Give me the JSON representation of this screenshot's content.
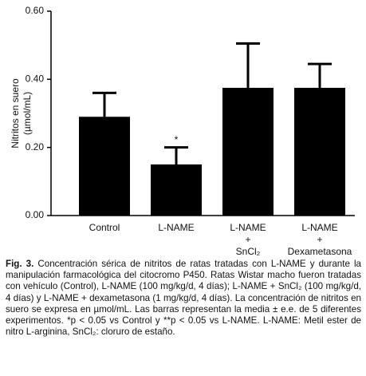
{
  "chart_data": {
    "type": "bar",
    "y_label": "Nitritos en suero\n(µmol/mL)",
    "categories": [
      "Control",
      "L-NAME",
      "L-NAME + SnCl₂",
      "L-NAME + Dexametasona"
    ],
    "values": [
      0.29,
      0.15,
      0.375,
      0.375
    ],
    "errors": [
      0.07,
      0.05,
      0.13,
      0.07
    ],
    "annotations": [
      null,
      "*",
      null,
      null
    ],
    "color": "#000000",
    "ylim": [
      0,
      0.6
    ],
    "yticks": [
      {
        "value": 0,
        "label": "0.00"
      },
      {
        "value": 0.2,
        "label": "0.20"
      },
      {
        "value": 0.4,
        "label": "0.40"
      },
      {
        "value": 0.6,
        "label": "0.60"
      }
    ],
    "grid": false
  },
  "caption": {
    "label": "Fig. 3.",
    "text": "Concentración sérica de nitritos de ratas tratadas con L-NAME y durante la manipulación farmacológica del citocromo P450. Ratas Wistar macho fueron tratadas con vehículo (Control), L-NAME (100 mg/kg/d, 4 días); L-NAME + SnCl₂ (100 mg/kg/d, 4 días) y L-NAME + dexametasona (1 mg/kg/d, 4 días). La concentración de nitritos en suero se expresa en µmol/mL. Las barras representan la media ± e.e. de 5 diferentes experimentos. *p < 0.05 vs Control y **p < 0.05 vs L-NAME. L-NAME: Metil ester de nitro L-arginina, SnCl₂: cloruro de estaño."
  }
}
